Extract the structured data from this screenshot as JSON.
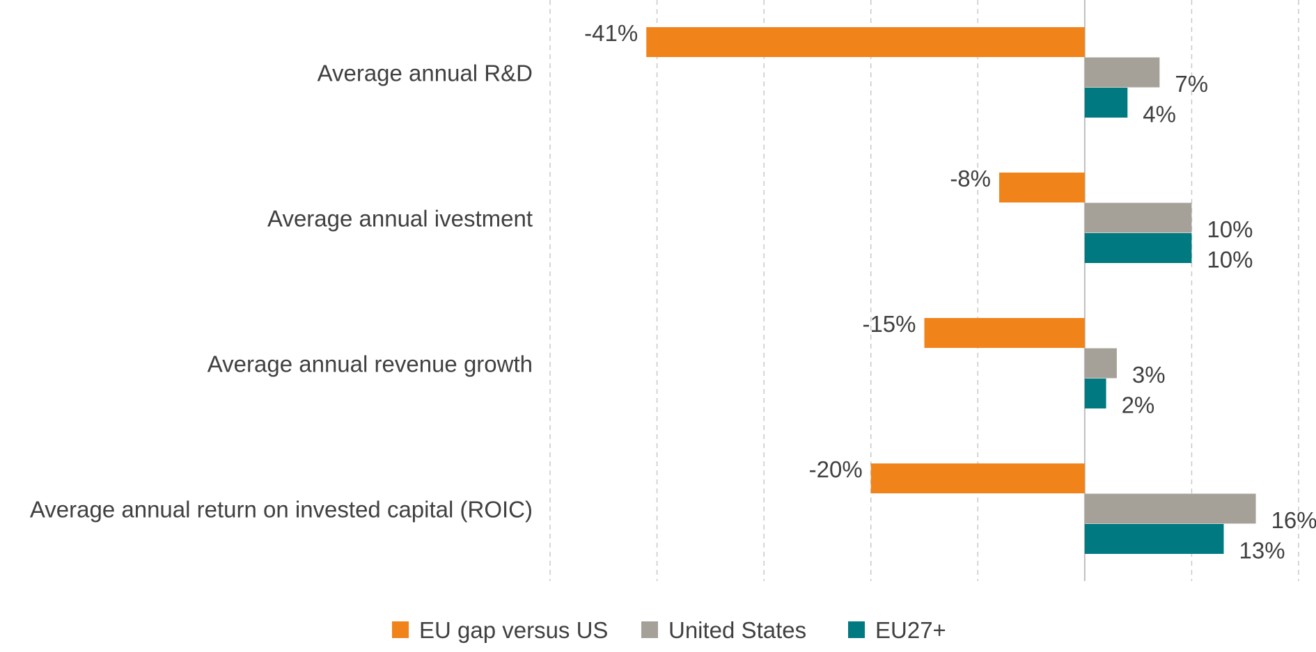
{
  "chart_data": {
    "type": "bar",
    "orientation": "horizontal",
    "categories": [
      "Average annual R&D",
      "Average annual ivestment",
      "Average annual revenue growth",
      "Average annual return on invested capital (ROIC)"
    ],
    "series": [
      {
        "name": "EU gap versus US",
        "values": [
          -41,
          -8,
          -15,
          -20
        ],
        "labels": [
          "-41%",
          "-8%",
          "-15%",
          "-20%"
        ],
        "color": "#F0841A"
      },
      {
        "name": "United States",
        "values": [
          7,
          10,
          3,
          16
        ],
        "labels": [
          "7%",
          "10%",
          "3%",
          "16%"
        ],
        "color": "#A6A198"
      },
      {
        "name": "EU27+",
        "values": [
          4,
          10,
          2,
          13
        ],
        "labels": [
          "4%",
          "10%",
          "2%",
          "13%"
        ],
        "color": "#007980"
      }
    ],
    "xlim": [
      -50,
      20
    ],
    "gridlines": "vertical dashed, every 10 units",
    "zero_line": true,
    "legend_position": "bottom"
  }
}
